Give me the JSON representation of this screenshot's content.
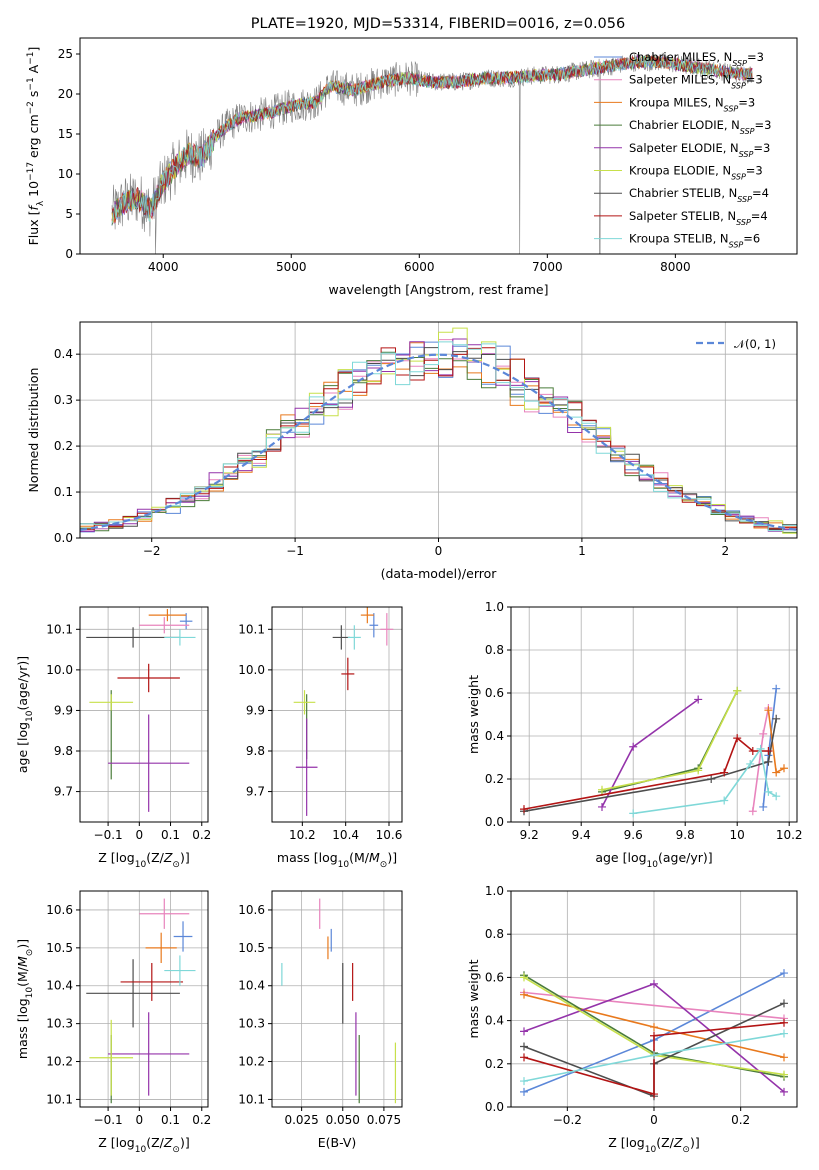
{
  "title": "PLATE=1920, MJD=53314, FIBERID=0016, z=0.056",
  "colors": {
    "Chabrier MILES": "#5b87d8",
    "Salpeter MILES": "#e884bd",
    "Kroupa MILES": "#e8791d",
    "Chabrier ELODIE": "#4a7c3a",
    "Salpeter ELODIE": "#9433aa",
    "Kroupa ELODIE": "#c7e04a",
    "Chabrier STELIB": "#4d4d4d",
    "Salpeter STELIB": "#b31414",
    "Kroupa STELIB": "#7fd8d8",
    "spectrum": "#808080",
    "normal": "#5b87d8"
  },
  "legend": {
    "spectrum": [
      {
        "name": "Chabrier MILES",
        "pre": "Chabrier MILES, N",
        "sub": "SSP",
        "post": "=3"
      },
      {
        "name": "Salpeter MILES",
        "pre": "Salpeter MILES, N",
        "sub": "SSP",
        "post": "=3"
      },
      {
        "name": "Kroupa MILES",
        "pre": "Kroupa MILES, N",
        "sub": "SSP",
        "post": "=3"
      },
      {
        "name": "Chabrier ELODIE",
        "pre": "Chabrier ELODIE, N",
        "sub": "SSP",
        "post": "=3"
      },
      {
        "name": "Salpeter ELODIE",
        "pre": "Salpeter ELODIE, N",
        "sub": "SSP",
        "post": "=3"
      },
      {
        "name": "Kroupa ELODIE",
        "pre": "Kroupa ELODIE, N",
        "sub": "SSP",
        "post": "=3"
      },
      {
        "name": "Chabrier STELIB",
        "pre": "Chabrier STELIB, N",
        "sub": "SSP",
        "post": "=4"
      },
      {
        "name": "Salpeter STELIB",
        "pre": "Salpeter STELIB, N",
        "sub": "SSP",
        "post": "=4"
      },
      {
        "name": "Kroupa STELIB",
        "pre": "Kroupa STELIB, N",
        "sub": "SSP",
        "post": "=6"
      }
    ],
    "hist": "𝒩(0, 1)"
  },
  "chart_data": [
    {
      "type": "line",
      "id": "spectrum",
      "xlabel": "wavelength [Angstrom, rest frame]",
      "ylabel": "Flux [f_λ 10^-17 erg cm^-2 s^-1 A^-1]",
      "xlim": [
        3350,
        8950
      ],
      "ylim": [
        0,
        27
      ],
      "xticks": [
        4000,
        5000,
        6000,
        7000,
        8000
      ],
      "yticks": [
        0,
        5,
        10,
        15,
        20,
        25
      ],
      "continuum": [
        [
          3600,
          5
        ],
        [
          3700,
          6.5
        ],
        [
          3800,
          7
        ],
        [
          3900,
          5.5
        ],
        [
          4000,
          9
        ],
        [
          4100,
          11
        ],
        [
          4200,
          12.5
        ],
        [
          4300,
          12
        ],
        [
          4400,
          14.5
        ],
        [
          4500,
          16
        ],
        [
          4600,
          17
        ],
        [
          4800,
          17.5
        ],
        [
          5000,
          18.5
        ],
        [
          5200,
          19
        ],
        [
          5300,
          21
        ],
        [
          5500,
          20.5
        ],
        [
          5700,
          21.5
        ],
        [
          5900,
          22
        ],
        [
          6100,
          21.5
        ],
        [
          6300,
          21.5
        ],
        [
          6500,
          22
        ],
        [
          6700,
          22
        ],
        [
          6900,
          22.3
        ],
        [
          7100,
          22.5
        ],
        [
          7300,
          23
        ],
        [
          7500,
          23.5
        ],
        [
          7700,
          24
        ],
        [
          7900,
          24
        ],
        [
          8100,
          23.5
        ],
        [
          8300,
          23
        ],
        [
          8500,
          22.5
        ],
        [
          8600,
          22.5
        ]
      ],
      "dips": [
        {
          "x": 3940,
          "y": 0
        },
        {
          "x": 6785,
          "y": 0
        },
        {
          "x": 7410,
          "y": 0
        }
      ]
    },
    {
      "type": "histogram",
      "id": "residuals",
      "xlabel": "(data-model)/error",
      "ylabel": "Normed distribution",
      "xlim": [
        -2.5,
        2.5
      ],
      "ylim": [
        0,
        0.47
      ],
      "xticks": [
        -2,
        -1,
        0,
        1,
        2
      ],
      "yticks": [
        0.0,
        0.1,
        0.2,
        0.3,
        0.4
      ],
      "bin_width": 0.1,
      "reference": "normal(0,1)"
    },
    {
      "type": "errorbar",
      "id": "age-vs-Z",
      "xlabel": "Z [log10(Z/Z☉)]",
      "ylabel": "age  [log10(age/yr)]",
      "xlim": [
        -0.19,
        0.22
      ],
      "ylim": [
        9.625,
        10.155
      ],
      "xticks": [
        -0.1,
        0.0,
        0.1,
        0.2
      ],
      "yticks": [
        9.7,
        9.8,
        9.9,
        10.0,
        10.1
      ],
      "points": [
        {
          "model": "Chabrier MILES",
          "x": 0.15,
          "xe": 0.02,
          "y": 10.12,
          "ye": 0.02
        },
        {
          "model": "Salpeter MILES",
          "x": 0.08,
          "xe": 0.08,
          "y": 10.11,
          "ye": 0.02
        },
        {
          "model": "Kroupa MILES",
          "x": 0.09,
          "xe": 0.06,
          "y": 10.135,
          "ye": 0.015
        },
        {
          "model": "Chabrier ELODIE",
          "x": -0.09,
          "xe": 0.0,
          "y": 9.84,
          "ye": 0.11
        },
        {
          "model": "Salpeter ELODIE",
          "x": 0.03,
          "xe": 0.13,
          "y": 9.77,
          "ye": 0.12
        },
        {
          "model": "Kroupa ELODIE",
          "x": -0.09,
          "xe": 0.07,
          "y": 9.92,
          "ye": 0.02
        },
        {
          "model": "Chabrier STELIB",
          "x": -0.02,
          "xe": 0.15,
          "y": 10.08,
          "ye": 0.025
        },
        {
          "model": "Salpeter STELIB",
          "x": 0.03,
          "xe": 0.1,
          "y": 9.98,
          "ye": 0.035
        },
        {
          "model": "Kroupa STELIB",
          "x": 0.13,
          "xe": 0.05,
          "y": 10.08,
          "ye": 0.02
        }
      ]
    },
    {
      "type": "errorbar",
      "id": "age-vs-mass",
      "xlabel": "mass [log10(M/M☉)]",
      "ylabel": "",
      "xlim": [
        10.06,
        10.66
      ],
      "ylim": [
        9.625,
        10.155
      ],
      "xticks": [
        10.2,
        10.4,
        10.6
      ],
      "yticks": [
        9.7,
        9.8,
        9.9,
        10.0,
        10.1
      ],
      "points": [
        {
          "model": "Chabrier MILES",
          "x": 10.53,
          "xe": 0.02,
          "y": 10.11,
          "ye": 0.03
        },
        {
          "model": "Salpeter MILES",
          "x": 10.59,
          "xe": 0.03,
          "y": 10.1,
          "ye": 0.04
        },
        {
          "model": "Kroupa MILES",
          "x": 10.5,
          "xe": 0.03,
          "y": 10.135,
          "ye": 0.02
        },
        {
          "model": "Chabrier ELODIE",
          "x": 10.22,
          "xe": 0.0,
          "y": 9.86,
          "ye": 0.08
        },
        {
          "model": "Salpeter ELODIE",
          "x": 10.22,
          "xe": 0.05,
          "y": 9.76,
          "ye": 0.12
        },
        {
          "model": "Kroupa ELODIE",
          "x": 10.21,
          "xe": 0.05,
          "y": 9.92,
          "ye": 0.03
        },
        {
          "model": "Chabrier STELIB",
          "x": 10.38,
          "xe": 0.04,
          "y": 10.08,
          "ye": 0.03
        },
        {
          "model": "Salpeter STELIB",
          "x": 10.41,
          "xe": 0.03,
          "y": 9.99,
          "ye": 0.04
        },
        {
          "model": "Kroupa STELIB",
          "x": 10.44,
          "xe": 0.03,
          "y": 10.08,
          "ye": 0.03
        }
      ]
    },
    {
      "type": "line",
      "id": "weight-vs-age",
      "xlabel": "age  [log10(age/yr)]",
      "ylabel": "mass weight",
      "xlim": [
        9.13,
        10.23
      ],
      "ylim": [
        0,
        1.0
      ],
      "xticks": [
        9.2,
        9.4,
        9.6,
        9.8,
        10.0,
        10.2
      ],
      "yticks": [
        0.0,
        0.2,
        0.4,
        0.6,
        0.8,
        1.0
      ],
      "series": [
        {
          "model": "Chabrier MILES",
          "points": [
            [
              10.1,
              0.07
            ],
            [
              10.12,
              0.31
            ],
            [
              10.15,
              0.62
            ]
          ]
        },
        {
          "model": "Salpeter MILES",
          "points": [
            [
              10.06,
              0.05
            ],
            [
              10.1,
              0.41
            ],
            [
              10.12,
              0.53
            ]
          ]
        },
        {
          "model": "Kroupa MILES",
          "points": [
            [
              10.12,
              0.52
            ],
            [
              10.15,
              0.23
            ],
            [
              10.18,
              0.25
            ]
          ]
        },
        {
          "model": "Chabrier ELODIE",
          "points": [
            [
              9.48,
              0.14
            ],
            [
              9.85,
              0.25
            ],
            [
              10.0,
              0.61
            ]
          ]
        },
        {
          "model": "Salpeter ELODIE",
          "points": [
            [
              9.48,
              0.07
            ],
            [
              9.6,
              0.35
            ],
            [
              9.85,
              0.57
            ]
          ]
        },
        {
          "model": "Kroupa ELODIE",
          "points": [
            [
              9.48,
              0.15
            ],
            [
              9.85,
              0.24
            ],
            [
              10.0,
              0.61
            ]
          ]
        },
        {
          "model": "Chabrier STELIB",
          "points": [
            [
              9.18,
              0.05
            ],
            [
              9.9,
              0.2
            ],
            [
              10.12,
              0.28
            ],
            [
              10.15,
              0.48
            ]
          ]
        },
        {
          "model": "Salpeter STELIB",
          "points": [
            [
              9.18,
              0.06
            ],
            [
              9.95,
              0.23
            ],
            [
              10.0,
              0.39
            ],
            [
              10.06,
              0.33
            ],
            [
              10.12,
              0.33
            ]
          ]
        },
        {
          "model": "Kroupa STELIB",
          "points": [
            [
              9.6,
              0.04
            ],
            [
              9.95,
              0.1
            ],
            [
              10.05,
              0.27
            ],
            [
              10.09,
              0.34
            ],
            [
              10.12,
              0.14
            ],
            [
              10.15,
              0.12
            ]
          ]
        }
      ]
    },
    {
      "type": "errorbar",
      "id": "mass-vs-Z",
      "xlabel": "Z [log10(Z/Z☉)]",
      "ylabel": "mass [log10(M/M☉)]",
      "xlim": [
        -0.19,
        0.22
      ],
      "ylim": [
        10.08,
        10.65
      ],
      "xticks": [
        -0.1,
        0.0,
        0.1,
        0.2
      ],
      "yticks": [
        10.1,
        10.2,
        10.3,
        10.4,
        10.5,
        10.6
      ],
      "points": [
        {
          "model": "Chabrier MILES",
          "x": 0.14,
          "xe": 0.03,
          "y": 10.53,
          "ye": 0.04
        },
        {
          "model": "Salpeter MILES",
          "x": 0.08,
          "xe": 0.08,
          "y": 10.59,
          "ye": 0.04
        },
        {
          "model": "Kroupa MILES",
          "x": 0.07,
          "xe": 0.05,
          "y": 10.5,
          "ye": 0.04
        },
        {
          "model": "Chabrier ELODIE",
          "x": -0.09,
          "xe": 0.0,
          "y": 10.18,
          "ye": 0.09
        },
        {
          "model": "Salpeter ELODIE",
          "x": 0.03,
          "xe": 0.13,
          "y": 10.22,
          "ye": 0.11
        },
        {
          "model": "Kroupa ELODIE",
          "x": -0.09,
          "xe": 0.07,
          "y": 10.21,
          "ye": 0.1
        },
        {
          "model": "Chabrier STELIB",
          "x": -0.02,
          "xe": 0.15,
          "y": 10.38,
          "ye": 0.09
        },
        {
          "model": "Salpeter STELIB",
          "x": 0.04,
          "xe": 0.1,
          "y": 10.41,
          "ye": 0.05
        },
        {
          "model": "Kroupa STELIB",
          "x": 0.13,
          "xe": 0.05,
          "y": 10.44,
          "ye": 0.04
        }
      ]
    },
    {
      "type": "errorbar",
      "id": "mass-vs-ebv",
      "xlabel": "E(B-V)",
      "ylabel": "",
      "xlim": [
        0.007,
        0.086
      ],
      "ylim": [
        10.08,
        10.65
      ],
      "xticks": [
        0.025,
        0.05,
        0.075
      ],
      "xticklabels": [
        "0.025",
        "0.050",
        "0.075"
      ],
      "yticks": [
        10.1,
        10.2,
        10.3,
        10.4,
        10.5,
        10.6
      ],
      "points": [
        {
          "model": "Chabrier MILES",
          "x": 0.043,
          "xe": 0,
          "y": 10.52,
          "ye": 0.03
        },
        {
          "model": "Salpeter MILES",
          "x": 0.036,
          "xe": 0,
          "y": 10.59,
          "ye": 0.04
        },
        {
          "model": "Kroupa MILES",
          "x": 0.041,
          "xe": 0,
          "y": 10.5,
          "ye": 0.03
        },
        {
          "model": "Chabrier ELODIE",
          "x": 0.06,
          "xe": 0,
          "y": 10.18,
          "ye": 0.09
        },
        {
          "model": "Salpeter ELODIE",
          "x": 0.058,
          "xe": 0,
          "y": 10.22,
          "ye": 0.11
        },
        {
          "model": "Kroupa ELODIE",
          "x": 0.082,
          "xe": 0,
          "y": 10.17,
          "ye": 0.08
        },
        {
          "model": "Chabrier STELIB",
          "x": 0.05,
          "xe": 0,
          "y": 10.38,
          "ye": 0.08
        },
        {
          "model": "Salpeter STELIB",
          "x": 0.056,
          "xe": 0,
          "y": 10.41,
          "ye": 0.05
        },
        {
          "model": "Kroupa STELIB",
          "x": 0.013,
          "xe": 0,
          "y": 10.43,
          "ye": 0.03
        }
      ]
    },
    {
      "type": "line",
      "id": "weight-vs-Z",
      "xlabel": "Z [log10(Z/Z☉)]",
      "ylabel": "mass weight",
      "xlim": [
        -0.33,
        0.33
      ],
      "ylim": [
        0,
        1.0
      ],
      "xticks": [
        -0.2,
        0.0,
        0.2
      ],
      "yticks": [
        0.0,
        0.2,
        0.4,
        0.6,
        0.8,
        1.0
      ],
      "series": [
        {
          "model": "Chabrier MILES",
          "points": [
            [
              -0.3,
              0.07
            ],
            [
              0.0,
              0.31
            ],
            [
              0.3,
              0.62
            ]
          ]
        },
        {
          "model": "Salpeter MILES",
          "points": [
            [
              -0.3,
              0.53
            ],
            [
              0.3,
              0.41
            ]
          ]
        },
        {
          "model": "Kroupa MILES",
          "points": [
            [
              -0.3,
              0.52
            ],
            [
              0.0,
              0.37
            ],
            [
              0.3,
              0.23
            ]
          ]
        },
        {
          "model": "Chabrier ELODIE",
          "points": [
            [
              -0.3,
              0.61
            ],
            [
              0.0,
              0.25
            ],
            [
              0.3,
              0.14
            ]
          ]
        },
        {
          "model": "Salpeter ELODIE",
          "points": [
            [
              -0.3,
              0.35
            ],
            [
              0.0,
              0.57
            ],
            [
              0.3,
              0.07
            ]
          ]
        },
        {
          "model": "Kroupa ELODIE",
          "points": [
            [
              -0.3,
              0.6
            ],
            [
              0.0,
              0.24
            ],
            [
              0.3,
              0.15
            ]
          ]
        },
        {
          "model": "Chabrier STELIB",
          "points": [
            [
              -0.3,
              0.28
            ],
            [
              0.0,
              0.05
            ],
            [
              0.0,
              0.2
            ],
            [
              0.3,
              0.48
            ]
          ]
        },
        {
          "model": "Salpeter STELIB",
          "points": [
            [
              -0.3,
              0.23
            ],
            [
              0.0,
              0.06
            ],
            [
              0.0,
              0.33
            ],
            [
              0.3,
              0.39
            ]
          ]
        },
        {
          "model": "Kroupa STELIB",
          "points": [
            [
              -0.3,
              0.12
            ],
            [
              0.0,
              0.24
            ],
            [
              0.3,
              0.34
            ]
          ]
        }
      ]
    }
  ]
}
